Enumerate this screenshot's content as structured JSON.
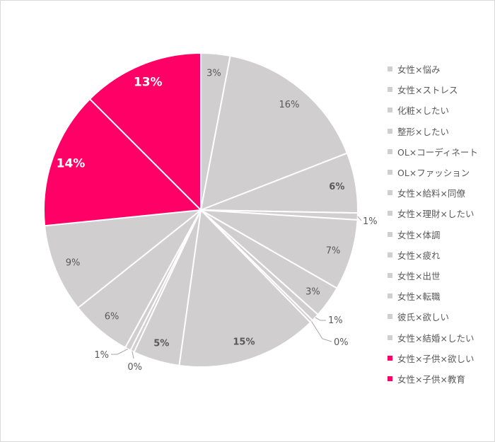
{
  "chart_data": {
    "type": "pie",
    "title": "",
    "start": "top",
    "direction": "clockwise",
    "colors": {
      "default": "#d0cece",
      "highlight": "#ff0066",
      "label_text": "#595959",
      "highlight_label_text": "#ffffff"
    },
    "legend_position": "right",
    "slices": [
      {
        "name": "女性×悩み",
        "value": 3.0,
        "label": "3%",
        "highlight": false,
        "bold": false
      },
      {
        "name": "女性×ストレス",
        "value": 16.1,
        "label": "16%",
        "highlight": false,
        "bold": false
      },
      {
        "name": "化粧×したい",
        "value": 6.2,
        "label": "6%",
        "highlight": false,
        "bold": true
      },
      {
        "name": "整形×したい",
        "value": 0.7,
        "label": "1%",
        "highlight": false,
        "bold": false
      },
      {
        "name": "OL×コーディネート",
        "value": 7.3,
        "label": "7%",
        "highlight": false,
        "bold": false
      },
      {
        "name": "OL×ファッション",
        "value": 3.3,
        "label": "3%",
        "highlight": false,
        "bold": false
      },
      {
        "name": "女性×給料×同僚",
        "value": 0.8,
        "label": "1%",
        "highlight": false,
        "bold": false
      },
      {
        "name": "女性×理財×したい",
        "value": 0.3,
        "label": "0%",
        "highlight": false,
        "bold": false
      },
      {
        "name": "女性×体調",
        "value": 14.5,
        "label": "15%",
        "highlight": false,
        "bold": true
      },
      {
        "name": "女性×疲れ",
        "value": 4.8,
        "label": "5%",
        "highlight": false,
        "bold": true
      },
      {
        "name": "女性×出世",
        "value": 0.4,
        "label": "0%",
        "highlight": false,
        "bold": false
      },
      {
        "name": "女性×転職",
        "value": 0.6,
        "label": "1%",
        "highlight": false,
        "bold": false
      },
      {
        "name": "彼氏×欲しい",
        "value": 6.3,
        "label": "6%",
        "highlight": false,
        "bold": false
      },
      {
        "name": "女性×結婚×したい",
        "value": 9.1,
        "label": "9%",
        "highlight": false,
        "bold": false
      },
      {
        "name": "女性×子供×欲しい",
        "value": 14.1,
        "label": "14%",
        "highlight": true,
        "bold": true
      },
      {
        "name": "女性×子供×教育",
        "value": 12.5,
        "label": "13%",
        "highlight": true,
        "bold": true
      }
    ]
  }
}
